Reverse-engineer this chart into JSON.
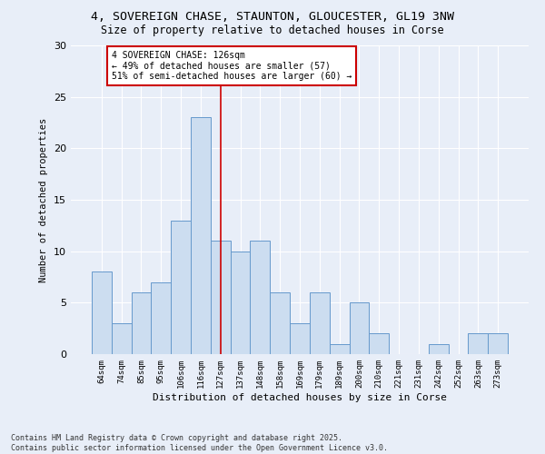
{
  "title1": "4, SOVEREIGN CHASE, STAUNTON, GLOUCESTER, GL19 3NW",
  "title2": "Size of property relative to detached houses in Corse",
  "xlabel": "Distribution of detached houses by size in Corse",
  "ylabel": "Number of detached properties",
  "bar_labels": [
    "64sqm",
    "74sqm",
    "85sqm",
    "95sqm",
    "106sqm",
    "116sqm",
    "127sqm",
    "137sqm",
    "148sqm",
    "158sqm",
    "169sqm",
    "179sqm",
    "189sqm",
    "200sqm",
    "210sqm",
    "221sqm",
    "231sqm",
    "242sqm",
    "252sqm",
    "263sqm",
    "273sqm"
  ],
  "bar_values": [
    8,
    3,
    6,
    7,
    13,
    23,
    11,
    10,
    11,
    6,
    3,
    6,
    1,
    5,
    2,
    0,
    0,
    1,
    0,
    2,
    2
  ],
  "bar_color": "#ccddf0",
  "bar_edge_color": "#6699cc",
  "vline_x": 6,
  "vline_color": "#cc0000",
  "annotation_text": "4 SOVEREIGN CHASE: 126sqm\n← 49% of detached houses are smaller (57)\n51% of semi-detached houses are larger (60) →",
  "annotation_box_color": "#ffffff",
  "annotation_box_edge_color": "#cc0000",
  "ylim": [
    0,
    30
  ],
  "yticks": [
    0,
    5,
    10,
    15,
    20,
    25,
    30
  ],
  "footnote": "Contains HM Land Registry data © Crown copyright and database right 2025.\nContains public sector information licensed under the Open Government Licence v3.0.",
  "bg_color": "#e8eef8",
  "plot_bg_color": "#e8eef8",
  "fig_width": 6.0,
  "fig_height": 5.0,
  "dpi": 100
}
